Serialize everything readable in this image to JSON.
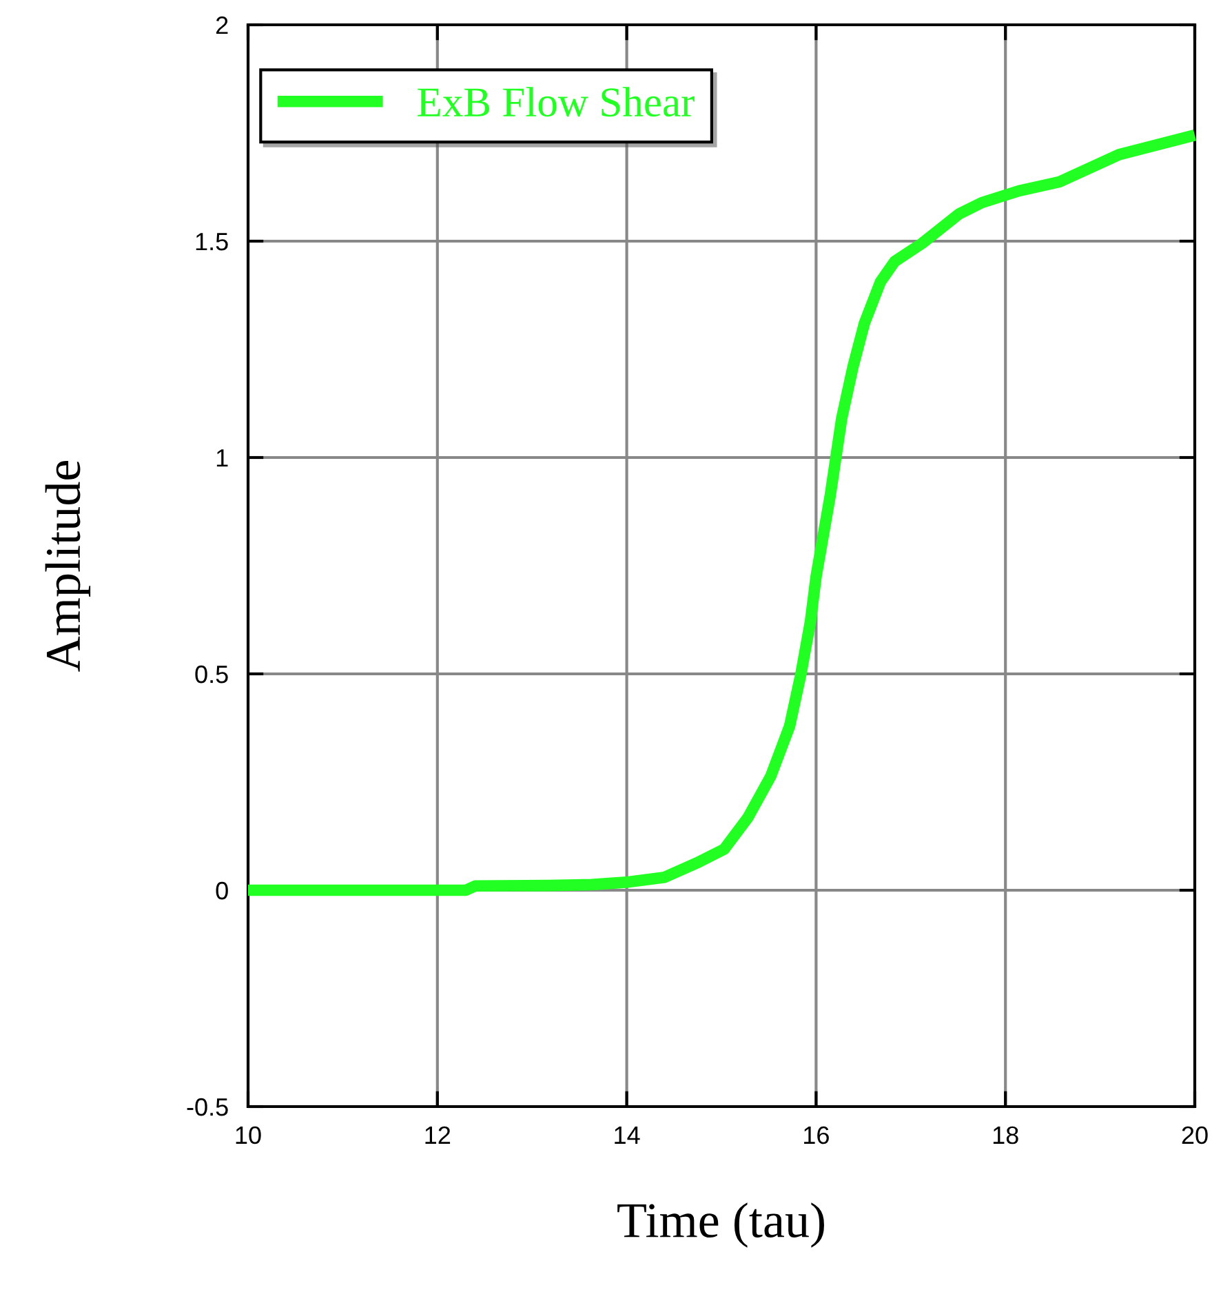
{
  "chart_data": {
    "type": "line",
    "xlabel": "Time (tau)",
    "ylabel": "Amplitude",
    "xlim": [
      10,
      20
    ],
    "ylim": [
      -0.5,
      2
    ],
    "xticks": [
      10,
      12,
      14,
      16,
      18,
      20
    ],
    "yticks": [
      -0.5,
      0,
      0.5,
      1,
      1.5,
      2
    ],
    "grid": true,
    "legend": "top left",
    "line_style": "solid",
    "marker": "none",
    "series": [
      {
        "name": "ExB Flow Shear",
        "color": "#22ff22",
        "x": [
          10,
          12.3,
          12.4,
          13.19,
          13.63,
          14.02,
          14.4,
          14.74,
          15.03,
          15.28,
          15.52,
          15.72,
          15.84,
          15.94,
          16.0,
          16.15,
          16.27,
          16.39,
          16.51,
          16.68,
          16.83,
          17.12,
          17.51,
          17.75,
          18.14,
          18.57,
          19.2,
          20
        ],
        "values": [
          0,
          0,
          0.01,
          0.011,
          0.013,
          0.019,
          0.03,
          0.063,
          0.095,
          0.168,
          0.263,
          0.379,
          0.5,
          0.621,
          0.725,
          0.913,
          1.09,
          1.21,
          1.31,
          1.406,
          1.453,
          1.495,
          1.563,
          1.589,
          1.616,
          1.637,
          1.7,
          1.745
        ]
      }
    ]
  }
}
